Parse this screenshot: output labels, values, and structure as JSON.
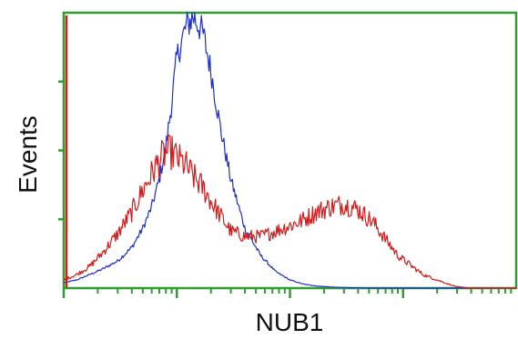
{
  "chart_data": {
    "type": "line",
    "title": "",
    "xlabel": "NUB1",
    "ylabel": "Events",
    "xscale": "log",
    "xlim": [
      1,
      10000
    ],
    "ylim": [
      0,
      1
    ],
    "grid": false,
    "legend": "none",
    "axis_color": "#2e9e2e",
    "series": [
      {
        "color": "#1f2fd0",
        "x": [
          1,
          1.3,
          1.7,
          2.2,
          3,
          4,
          5,
          6,
          7,
          8,
          9,
          10,
          12,
          14,
          17,
          20,
          24,
          30,
          40,
          55,
          75,
          100,
          130,
          170,
          230,
          300,
          400,
          550,
          800,
          1200,
          2000,
          10000
        ],
        "y": [
          0.02,
          0.03,
          0.05,
          0.07,
          0.1,
          0.15,
          0.22,
          0.3,
          0.4,
          0.52,
          0.68,
          0.85,
          0.96,
          1.0,
          0.94,
          0.8,
          0.6,
          0.4,
          0.22,
          0.12,
          0.06,
          0.03,
          0.015,
          0.008,
          0.004,
          0.002,
          0.001,
          0.0,
          0.0,
          0.0,
          0.0,
          0.0
        ]
      },
      {
        "color": "#d41a1a",
        "x": [
          1,
          1.3,
          1.7,
          2.2,
          3,
          4,
          5,
          6,
          7,
          8,
          9,
          10,
          12,
          14,
          17,
          20,
          24,
          30,
          40,
          55,
          75,
          100,
          130,
          170,
          230,
          300,
          400,
          550,
          700,
          900,
          1200,
          1500,
          2000,
          2500,
          3000,
          4000,
          10000
        ],
        "y": [
          0.03,
          0.05,
          0.08,
          0.13,
          0.2,
          0.28,
          0.36,
          0.42,
          0.47,
          0.5,
          0.5,
          0.48,
          0.45,
          0.41,
          0.37,
          0.32,
          0.27,
          0.21,
          0.19,
          0.19,
          0.21,
          0.23,
          0.25,
          0.28,
          0.3,
          0.31,
          0.29,
          0.24,
          0.18,
          0.12,
          0.08,
          0.05,
          0.03,
          0.015,
          0.005,
          0.0,
          0.0
        ]
      }
    ]
  }
}
